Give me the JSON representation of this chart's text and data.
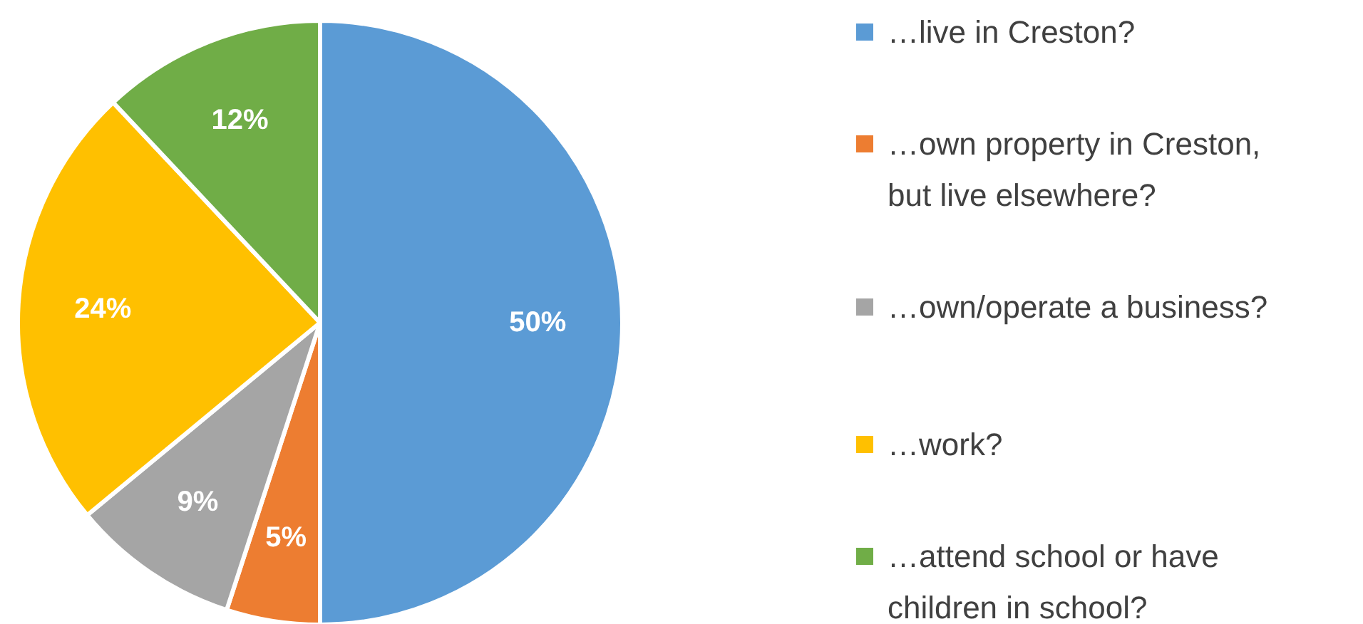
{
  "chart_data": {
    "type": "pie",
    "categories": [
      "…live in Creston?",
      "…own property in Creston, but live elsewhere?",
      "…own/operate a business?",
      "…work?",
      "…attend school or have children in school?"
    ],
    "values": [
      50,
      5,
      9,
      24,
      12
    ],
    "colors": [
      "#5b9bd5",
      "#ed7d31",
      "#a5a5a5",
      "#ffc000",
      "#70ad47"
    ],
    "value_labels": [
      "50%",
      "5%",
      "9%",
      "24%",
      "12%"
    ],
    "legend": "right"
  }
}
